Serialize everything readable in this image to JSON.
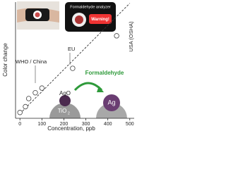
{
  "chart_data": {
    "type": "scatter",
    "x_label": "Concentration, ppb",
    "y_label": "Color change",
    "x": [
      0,
      25,
      40,
      70,
      100,
      240,
      440
    ],
    "values": [
      5,
      10,
      17,
      22,
      26,
      43,
      71
    ],
    "color": "#444444",
    "trend_x": [
      0,
      500
    ],
    "trend_y": [
      4,
      99
    ],
    "xlim": [
      -20,
      520
    ],
    "ylim": [
      0,
      100
    ],
    "xticks": [
      0,
      100,
      200,
      300,
      400,
      500
    ],
    "annotations": {
      "who": "WHO / China",
      "eu": "EU",
      "usa": "USA (OSHA)",
      "analyzer": "Formaldehyde analyzer",
      "warning": "Warning!",
      "gas": "Formaldehyde",
      "ago": "AgO",
      "tio2": "TiO",
      "tio2_sub": "2",
      "ag": "Ag"
    }
  }
}
